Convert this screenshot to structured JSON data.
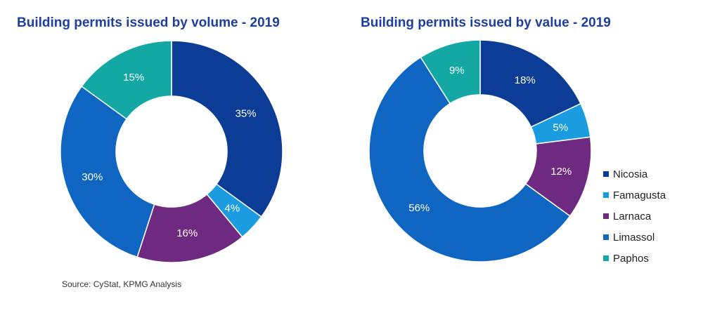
{
  "colors": {
    "Nicosia": "#0b3c96",
    "Famagusta": "#1b9ce0",
    "Larnaca": "#6e2a80",
    "Limassol": "#0f66c2",
    "Paphos": "#13a8a3",
    "title": "#1f3f9e"
  },
  "chart_data": [
    {
      "type": "pie",
      "title": "Building permits issued by volume - 2019",
      "categories": [
        "Nicosia",
        "Famagusta",
        "Larnaca",
        "Limassol",
        "Paphos"
      ],
      "values": [
        35,
        4,
        16,
        30,
        15
      ],
      "labels": [
        "35%",
        "4%",
        "16%",
        "30%",
        "15%"
      ]
    },
    {
      "type": "pie",
      "title": "Building permits issued by value - 2019",
      "categories": [
        "Nicosia",
        "Famagusta",
        "Larnaca",
        "Limassol",
        "Paphos"
      ],
      "values": [
        18,
        5,
        12,
        56,
        9
      ],
      "labels": [
        "18%",
        "5%",
        "12%",
        "56%",
        "9%"
      ]
    }
  ],
  "legend": [
    "Nicosia",
    "Famagusta",
    "Larnaca",
    "Limassol",
    "Paphos"
  ],
  "source": "Source: CyStat, KPMG Analysis"
}
